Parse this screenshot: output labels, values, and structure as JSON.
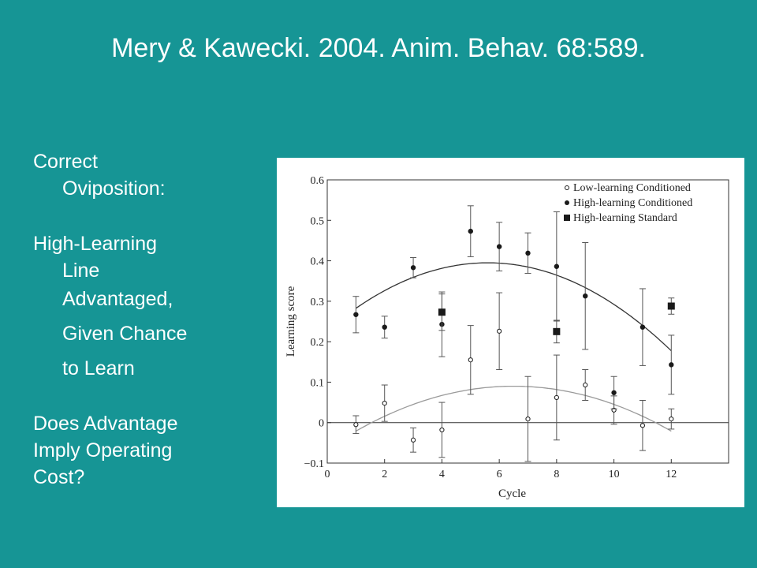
{
  "slide": {
    "title": "Mery & Kawecki. 2004. Anim. Behav. 68:589.",
    "bullets": {
      "b1_line1": "Correct",
      "b1_line2": "Oviposition:",
      "b2_line1": "High-Learning",
      "b2_line2": "Line",
      "sub1": "Advantaged,",
      "sub2": "Given Chance",
      "sub3": "to Learn",
      "b3_line1": "Does Advantage",
      "b3_line2": "Imply Operating",
      "b3_line3": "Cost?"
    },
    "colors": {
      "background": "#169595",
      "text": "#ffffff"
    }
  },
  "chart_data": {
    "type": "scatter",
    "xlabel": "Cycle",
    "ylabel": "Learning score",
    "xlim": [
      0,
      14
    ],
    "ylim": [
      -0.1,
      0.6
    ],
    "xticks": [
      0,
      2,
      4,
      6,
      8,
      10,
      12
    ],
    "yticks": [
      -0.1,
      0,
      0.1,
      0.2,
      0.3,
      0.4,
      0.5,
      0.6
    ],
    "ytick_labels": [
      "−0.1",
      "0",
      "0.1",
      "0.2",
      "0.3",
      "0.4",
      "0.5",
      "0.6"
    ],
    "grid": false,
    "legend_position": "top-right",
    "series": [
      {
        "name": "Low-learning Conditioned",
        "marker": "open-circle",
        "x": [
          1,
          2,
          3,
          4,
          5,
          6,
          7,
          8,
          9,
          10,
          11,
          12
        ],
        "y": [
          -0.005,
          0.048,
          -0.043,
          -0.018,
          0.155,
          0.226,
          0.009,
          0.062,
          0.093,
          0.031,
          -0.007,
          0.009
        ],
        "err": [
          0.022,
          0.045,
          0.03,
          0.068,
          0.085,
          0.095,
          0.105,
          0.105,
          0.038,
          0.035,
          0.062,
          0.025
        ]
      },
      {
        "name": "High-learning Conditioned",
        "marker": "filled-circle",
        "x": [
          1,
          2,
          3,
          4,
          5,
          6,
          7,
          8,
          9,
          10,
          11,
          12
        ],
        "y": [
          0.267,
          0.236,
          0.383,
          0.243,
          0.473,
          0.435,
          0.419,
          0.386,
          0.313,
          0.074,
          0.236,
          0.143
        ],
        "err": [
          0.045,
          0.027,
          0.025,
          0.08,
          0.063,
          0.06,
          0.05,
          0.135,
          0.132,
          0.04,
          0.095,
          0.073
        ]
      },
      {
        "name": "High-learning Standard",
        "marker": "filled-square",
        "x": [
          4,
          8,
          12
        ],
        "y": [
          0.273,
          0.225,
          0.288
        ],
        "err": [
          0.045,
          0.028,
          0.02
        ]
      }
    ],
    "fit_curves": [
      {
        "series": "High-learning Conditioned",
        "type": "quadratic",
        "vertex_x": 5.6,
        "vertex_y": 0.395,
        "coef_a": -0.00531
      },
      {
        "series": "Low-learning Conditioned",
        "type": "quadratic",
        "vertex_x": 6.5,
        "vertex_y": 0.09,
        "coef_a": -0.00367
      }
    ],
    "colors": {
      "points": "#1a1a1a",
      "high_fit": "#333333",
      "low_fit": "#9a9a9a",
      "axes": "#333333"
    }
  }
}
